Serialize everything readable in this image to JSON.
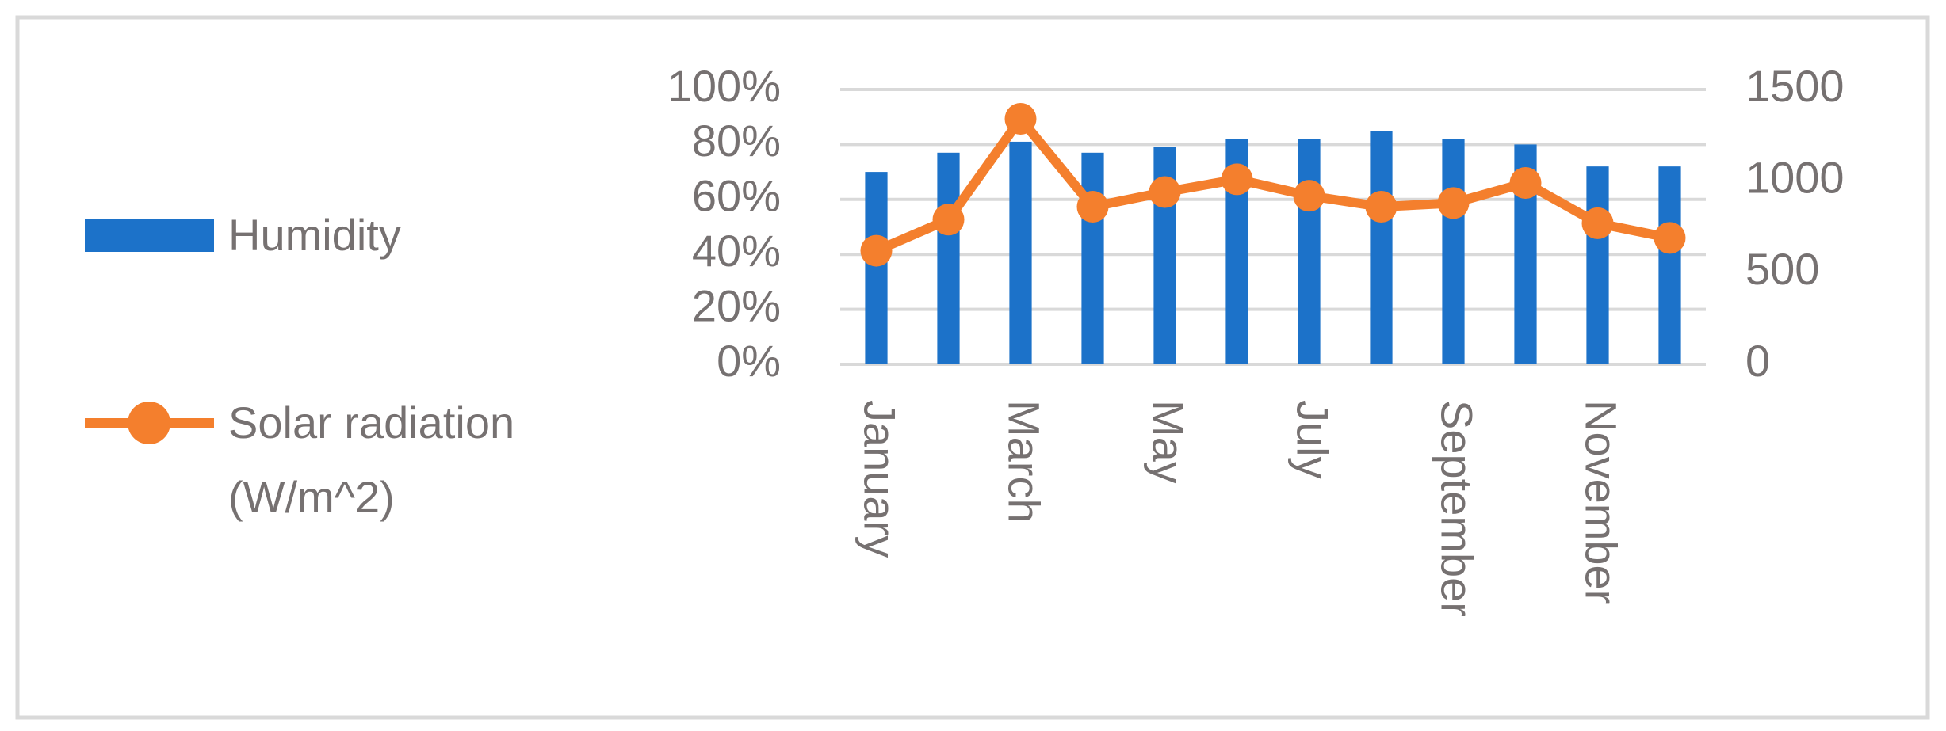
{
  "chart_data": {
    "type": "bar",
    "categories": [
      "January",
      null,
      "March",
      null,
      "May",
      null,
      "July",
      null,
      "September",
      null,
      "November",
      null
    ],
    "series": [
      {
        "name": "Humidity",
        "color": "#1c72c9",
        "type": "bar",
        "values": [
          70,
          77,
          81,
          77,
          79,
          82,
          82,
          85,
          82,
          80,
          72,
          72
        ]
      },
      {
        "name": "Solar radiation (W/m^2)",
        "color": "#f47f2d",
        "type": "line",
        "axis": "y2",
        "values": [
          620,
          790,
          1340,
          860,
          940,
          1010,
          920,
          860,
          880,
          990,
          770,
          690
        ]
      }
    ],
    "ylim": [
      0,
      100
    ],
    "yticks": [
      {
        "value": 0,
        "label": "0%"
      },
      {
        "value": 20,
        "label": "20%"
      },
      {
        "value": 40,
        "label": "40%"
      },
      {
        "value": 60,
        "label": "60%"
      },
      {
        "value": 80,
        "label": "80%"
      },
      {
        "value": 100,
        "label": "100%"
      }
    ],
    "y2lim": [
      0,
      1500
    ],
    "y2ticks": [
      0,
      500,
      1000,
      1500
    ],
    "grid": true,
    "legend": "left"
  }
}
